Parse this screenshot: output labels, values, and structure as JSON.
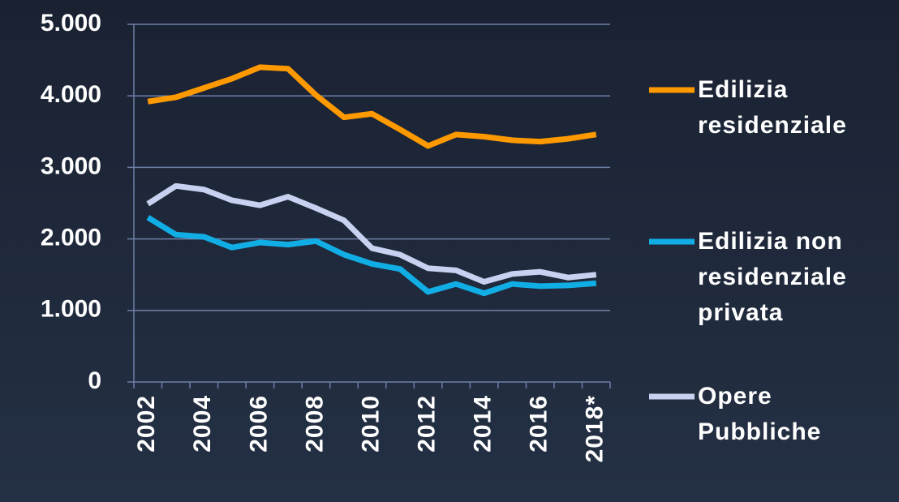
{
  "chart_data": {
    "type": "line",
    "categories": [
      "2002",
      null,
      "2004",
      null,
      "2006",
      null,
      "2008",
      null,
      "2010",
      null,
      "2012",
      null,
      "2014",
      null,
      "2016",
      null,
      "2018*"
    ],
    "series": [
      {
        "name": "Edilizia residenziale",
        "color": "#ff9900",
        "values": [
          3920,
          3980,
          4110,
          4240,
          4400,
          4380,
          4010,
          3700,
          3750,
          3530,
          3300,
          3460,
          3430,
          3380,
          3360,
          3400,
          3460
        ]
      },
      {
        "name": "Edilizia non residenziale privata",
        "color": "#11aee6",
        "values": [
          2300,
          2060,
          2030,
          1880,
          1950,
          1920,
          1970,
          1780,
          1650,
          1580,
          1260,
          1370,
          1240,
          1370,
          1340,
          1350,
          1380
        ]
      },
      {
        "name": "Opere Pubbliche",
        "color": "#c8d2f0",
        "values": [
          2490,
          2740,
          2690,
          2540,
          2470,
          2590,
          2430,
          2260,
          1870,
          1780,
          1590,
          1560,
          1400,
          1510,
          1540,
          1460,
          1500
        ]
      }
    ],
    "ylim": [
      0,
      5000
    ],
    "yticks": [
      0,
      {
        "value": 1000,
        "label": "1.000"
      },
      {
        "value": 2000,
        "label": "2.000"
      },
      {
        "value": 3000,
        "label": "3.000"
      },
      {
        "value": 4000,
        "label": "4.000"
      },
      {
        "value": 5000,
        "label": "5.000"
      }
    ],
    "grid": true
  }
}
